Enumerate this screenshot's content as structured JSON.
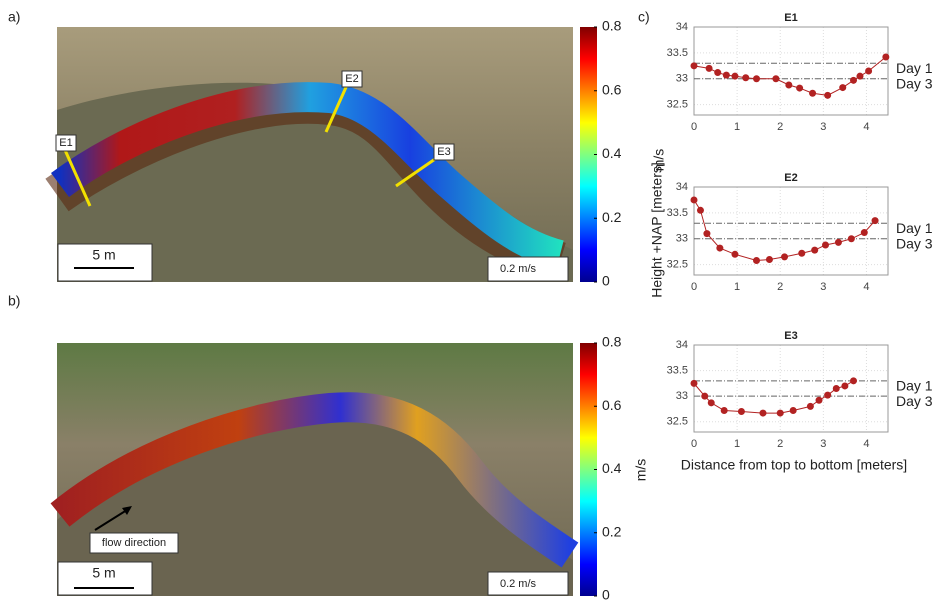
{
  "chart_data": [
    {
      "type": "flowmap",
      "panel_label": "a)",
      "colorbar_label": "m/s",
      "clim": [
        0,
        0.8
      ],
      "cticks": [
        0,
        0.2,
        0.4,
        0.6,
        0.8
      ],
      "annotations": [
        "E1",
        "E2",
        "E3"
      ],
      "scale_bar": "5 m",
      "vector_scale": "0.2 m/s"
    },
    {
      "type": "flowmap",
      "panel_label": "b)",
      "colorbar_label": "m/s",
      "clim": [
        0,
        0.8
      ],
      "cticks": [
        0,
        0.2,
        0.4,
        0.6,
        0.8
      ],
      "annotations": [
        "flow direction"
      ],
      "scale_bar": "5 m",
      "vector_scale": "0.2 m/s"
    },
    {
      "type": "line",
      "panel_label": "c)",
      "title": "E1",
      "color": "#b22222",
      "x": [
        0,
        0.35,
        0.55,
        0.75,
        0.95,
        1.2,
        1.45,
        1.9,
        2.2,
        2.45,
        2.75,
        3.1,
        3.45,
        3.7,
        3.85,
        4.05,
        4.45
      ],
      "values": [
        33.25,
        33.2,
        33.12,
        33.07,
        33.05,
        33.02,
        33.0,
        33.0,
        32.88,
        32.82,
        32.72,
        32.68,
        32.83,
        32.97,
        33.05,
        33.15,
        33.42
      ],
      "xlim": [
        0,
        4.5
      ],
      "xticks": [
        0,
        1,
        2,
        3,
        4
      ],
      "ylim": [
        32.3,
        34
      ],
      "yticks": [
        32.5,
        33,
        33.5,
        34
      ],
      "grid": true,
      "hlines": [
        {
          "value": 33.3,
          "label": "Day 1"
        },
        {
          "value": 33.0,
          "label": "Day 3"
        }
      ]
    },
    {
      "type": "line",
      "title": "E2",
      "color": "#b22222",
      "ylabel": "Height +NAP [meters]",
      "x": [
        0,
        0.15,
        0.3,
        0.6,
        0.95,
        1.45,
        1.75,
        2.1,
        2.5,
        2.8,
        3.05,
        3.35,
        3.65,
        3.95,
        4.2
      ],
      "values": [
        33.75,
        33.55,
        33.1,
        32.82,
        32.7,
        32.58,
        32.6,
        32.65,
        32.72,
        32.78,
        32.88,
        32.93,
        33.0,
        33.12,
        33.35
      ],
      "xlim": [
        0,
        4.5
      ],
      "xticks": [
        0,
        1,
        2,
        3,
        4
      ],
      "ylim": [
        32.3,
        34
      ],
      "yticks": [
        32.5,
        33,
        33.5,
        34
      ],
      "grid": true,
      "hlines": [
        {
          "value": 33.3,
          "label": "Day 1"
        },
        {
          "value": 33.0,
          "label": "Day 3"
        }
      ]
    },
    {
      "type": "line",
      "title": "E3",
      "color": "#b22222",
      "xlabel": "Distance from top to bottom [meters]",
      "x": [
        0,
        0.25,
        0.4,
        0.7,
        1.1,
        1.6,
        2.0,
        2.3,
        2.7,
        2.9,
        3.1,
        3.3,
        3.5,
        3.7
      ],
      "values": [
        33.25,
        33.0,
        32.87,
        32.72,
        32.7,
        32.67,
        32.67,
        32.72,
        32.8,
        32.92,
        33.02,
        33.15,
        33.2,
        33.3
      ],
      "xlim": [
        0,
        4.5
      ],
      "xticks": [
        0,
        1,
        2,
        3,
        4
      ],
      "ylim": [
        32.3,
        34
      ],
      "yticks": [
        32.5,
        33,
        33.5,
        34
      ],
      "grid": true,
      "hlines": [
        {
          "value": 33.3,
          "label": "Day 1"
        },
        {
          "value": 33.0,
          "label": "Day 3"
        }
      ]
    }
  ]
}
